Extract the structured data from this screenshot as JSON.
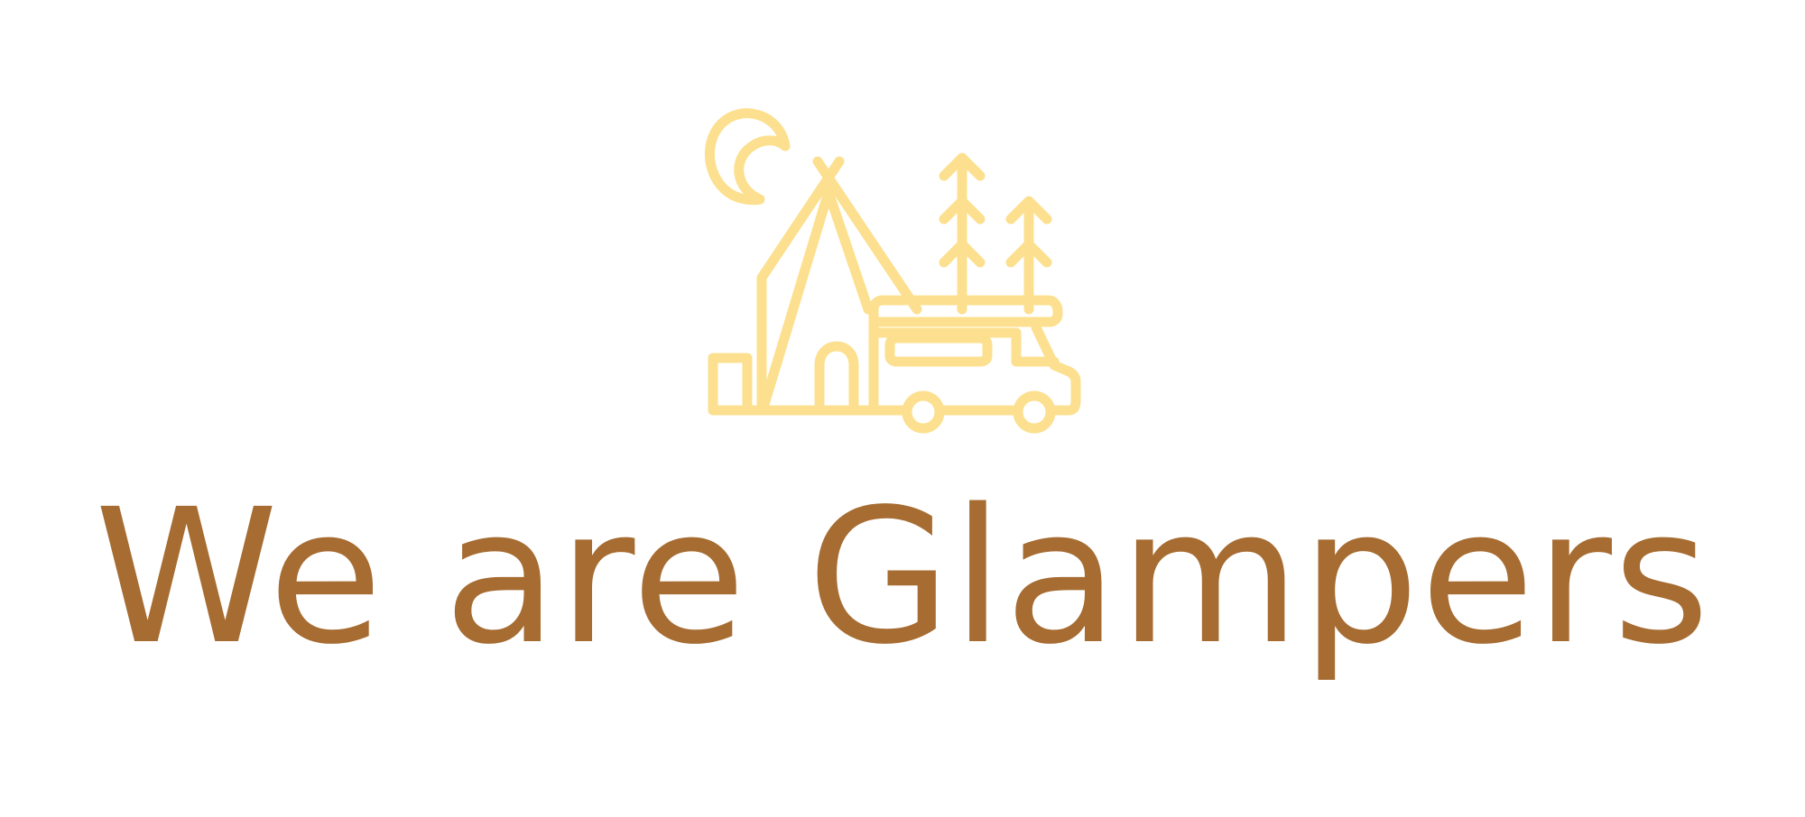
{
  "logo": {
    "icon": "glamping-camp-icon",
    "stroke_color": "#FCE08F"
  },
  "tagline": {
    "text": "We are Glampers",
    "color": "#A66C32"
  }
}
